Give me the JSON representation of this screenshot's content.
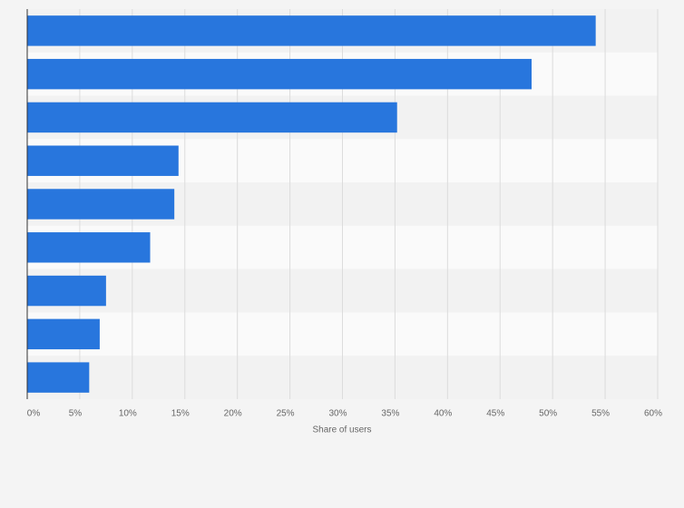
{
  "chart_data": {
    "type": "barh",
    "categories": [
      null,
      null,
      null,
      null,
      null,
      null,
      null,
      null,
      null
    ],
    "values": [
      54.1,
      48.0,
      35.2,
      14.4,
      14.0,
      11.7,
      7.5,
      6.9,
      5.9
    ],
    "color": "#2876dd",
    "xlabel": "Share of users",
    "xlim": [
      0,
      60
    ],
    "xticks": [
      {
        "value": 0,
        "label": "0%"
      },
      {
        "value": 5,
        "label": "5%"
      },
      {
        "value": 10,
        "label": "10%"
      },
      {
        "value": 15,
        "label": "15%"
      },
      {
        "value": 20,
        "label": "20%"
      },
      {
        "value": 25,
        "label": "25%"
      },
      {
        "value": 30,
        "label": "30%"
      },
      {
        "value": 35,
        "label": "35%"
      },
      {
        "value": 40,
        "label": "40%"
      },
      {
        "value": 45,
        "label": "45%"
      },
      {
        "value": 50,
        "label": "50%"
      },
      {
        "value": 55,
        "label": "55%"
      },
      {
        "value": 60,
        "label": "60%"
      }
    ],
    "grid": true
  }
}
